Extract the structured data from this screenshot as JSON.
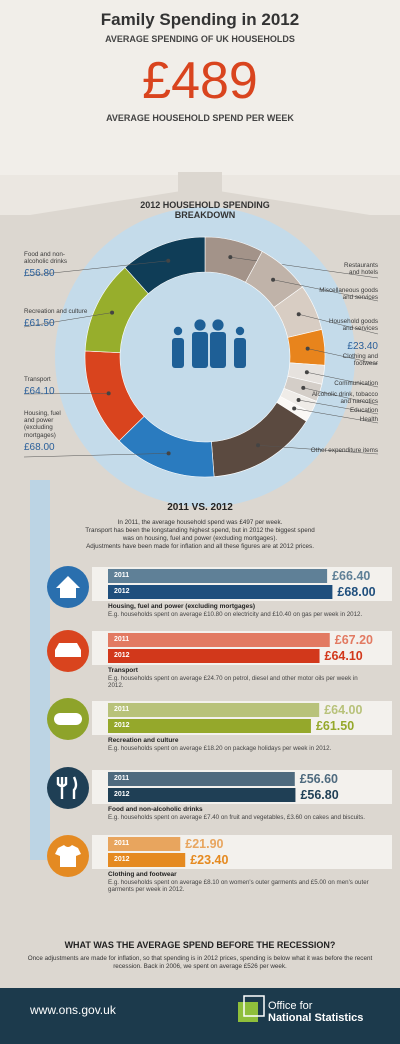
{
  "header": {
    "title": "Family Spending in 2012",
    "subtitle": "AVERAGE SPENDING OF UK HOUSEHOLDS",
    "headline": "£489",
    "headline_caption": "AVERAGE HOUSEHOLD SPEND PER WEEK"
  },
  "chart_data": [
    {
      "type": "donut",
      "title": "2012 HOUSEHOLD SPENDING BREAKDOWN",
      "categories": [
        "Restaurants and hotels",
        "Miscellaneous goods and services",
        "Household goods and services",
        "Clothing and footwear",
        "Communication",
        "Alcoholic drink, tobacco and narcotics",
        "Education",
        "Health",
        "Other expenditure items",
        "Housing, fuel and power (excluding mortgages)",
        "Transport",
        "Recreation and culture",
        "Food and non-alcoholic drinks"
      ],
      "values": [
        38.7,
        35.0,
        30.5,
        23.4,
        12.5,
        11.6,
        8.2,
        6.3,
        72.4,
        68.0,
        64.1,
        61.5,
        56.8
      ],
      "value_labels": [
        null,
        null,
        null,
        "£23.40",
        null,
        null,
        null,
        null,
        null,
        "£68.00",
        "£64.10",
        "£61.50",
        "£56.80"
      ],
      "colors": [
        "#a39389",
        "#c0b3a9",
        "#d8cdc3",
        "#e8841c",
        "#e6e2de",
        "#d4cec8",
        "#efece8",
        "#faf8f5",
        "#5b4a40",
        "#2a7bbf",
        "#d9441e",
        "#97ae2c",
        "#0f3d57"
      ]
    },
    {
      "type": "bar",
      "title": "Housing, fuel and power (excluding mortgages)",
      "subtitle": "E.g. households spent on average £10.80 on electricity and £10.40 on gas per week in 2012.",
      "categories": [
        "2011",
        "2012"
      ],
      "values": [
        66.4,
        68.0
      ],
      "value_labels": [
        "£66.40",
        "£68.00"
      ],
      "colors": [
        "#5f8097",
        "#1f4f7d"
      ]
    },
    {
      "type": "bar",
      "title": "Transport",
      "subtitle": "E.g. households spent on average £24.70 on petrol, diesel and other motor oils per week in 2012.",
      "categories": [
        "2011",
        "2012"
      ],
      "values": [
        67.2,
        64.1
      ],
      "value_labels": [
        "£67.20",
        "£64.10"
      ],
      "colors": [
        "#e27a62",
        "#d2381b"
      ]
    },
    {
      "type": "bar",
      "title": "Recreation and culture",
      "subtitle": "E.g. households spent on average £18.20 on package holidays per week in 2012.",
      "categories": [
        "2011",
        "2012"
      ],
      "values": [
        64.0,
        61.5
      ],
      "value_labels": [
        "£64.00",
        "£61.50"
      ],
      "colors": [
        "#b8c27a",
        "#95a82b"
      ]
    },
    {
      "type": "bar",
      "title": "Food and non-alcoholic drinks",
      "subtitle": "E.g. households spent on average £7.40 on fruit and vegetables, £3.60 on cakes and biscuits.",
      "categories": [
        "2011",
        "2012"
      ],
      "values": [
        56.6,
        56.8
      ],
      "value_labels": [
        "£56.60",
        "£56.80"
      ],
      "colors": [
        "#4e6a7e",
        "#1f3f55"
      ]
    },
    {
      "type": "bar",
      "title": "Clothing and footwear",
      "subtitle": "E.g. households spent on average £8.10 on women's outer garments and £5.00 on men's outer garments per week in 2012.",
      "categories": [
        "2011",
        "2012"
      ],
      "values": [
        21.9,
        23.4
      ],
      "value_labels": [
        "£21.90",
        "£23.40"
      ],
      "colors": [
        "#e8a55e",
        "#e58a20"
      ]
    }
  ],
  "comparison": {
    "title": "2011 VS. 2012",
    "text": [
      "In 2011, the average household spend was £497 per week.",
      "Transport has been the longstanding highest spend, but in 2012 the biggest spend",
      "was on housing, fuel and power (excluding mortgages).",
      "Adjustments have been made for inflation and all these figures are at 2012 prices."
    ]
  },
  "recession": {
    "title": "WHAT WAS THE AVERAGE SPEND BEFORE THE RECESSION?",
    "text": [
      "Once adjustments are made for inflation, so that spending is in 2012 prices, spending is below what it was before the recent",
      "recession. Back in 2006, we spent on average £526 per week."
    ]
  },
  "footer": {
    "url": "www.ons.gov.uk",
    "logo": [
      "Office for",
      "National Statistics"
    ]
  }
}
